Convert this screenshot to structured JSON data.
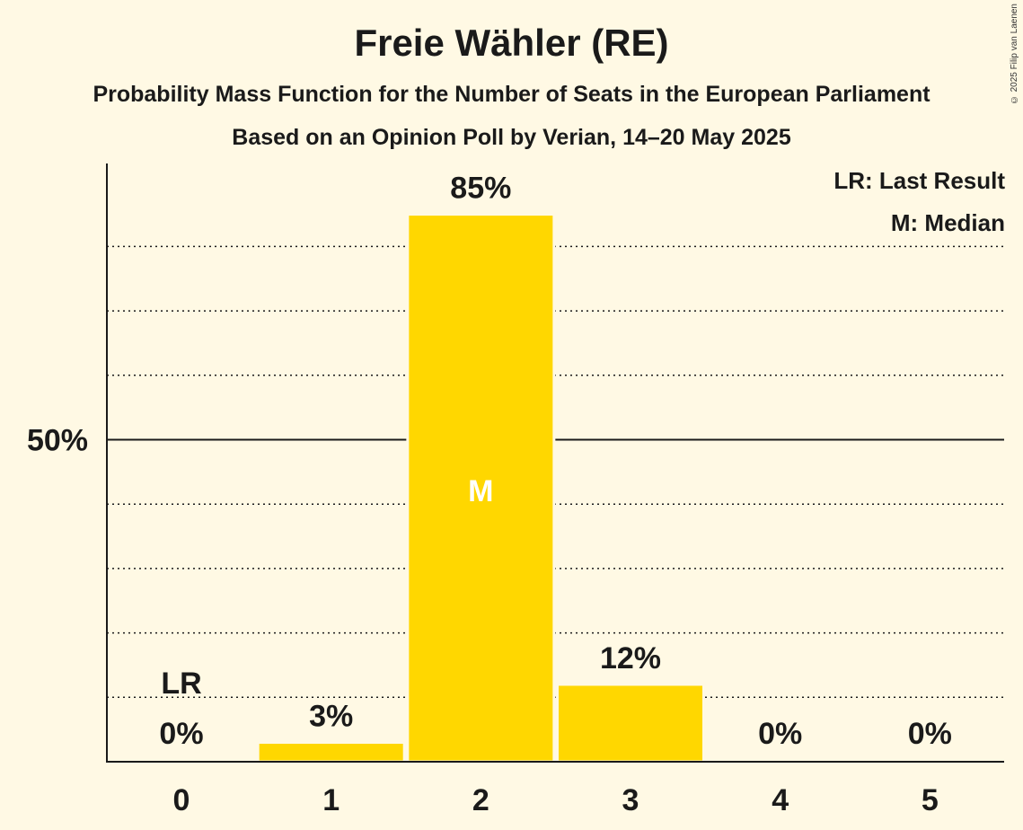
{
  "header": {
    "title": "Freie Wähler (RE)",
    "subtitle": "Probability Mass Function for the Number of Seats in the European Parliament",
    "poll_line": "Based on an Opinion Poll by Verian, 14–20 May 2025",
    "copyright": "© 2025 Filip van Laenen"
  },
  "legend": {
    "last_result": "LR: Last Result",
    "median": "M: Median"
  },
  "chart_data": {
    "type": "bar",
    "title": "Freie Wähler (RE)",
    "subtitle": "Probability Mass Function for the Number of Seats in the European Parliament",
    "categories": [
      "0",
      "1",
      "2",
      "3",
      "4",
      "5"
    ],
    "values": [
      0,
      3,
      85,
      12,
      0,
      0
    ],
    "value_labels": [
      "0%",
      "3%",
      "85%",
      "12%",
      "0%",
      "0%"
    ],
    "ylim": [
      0,
      93
    ],
    "y_ticks": [
      {
        "value": 50,
        "label": "50%"
      }
    ],
    "gridlines": [
      10,
      20,
      30,
      40,
      60,
      70,
      80
    ],
    "last_result_seat": "0",
    "last_result_label": "LR",
    "median_seat": "2",
    "median_label": "M",
    "bar_color": "#FFD700",
    "background_color": "#FFF9E4",
    "grid": "dotted",
    "legend_position": "top-right"
  }
}
